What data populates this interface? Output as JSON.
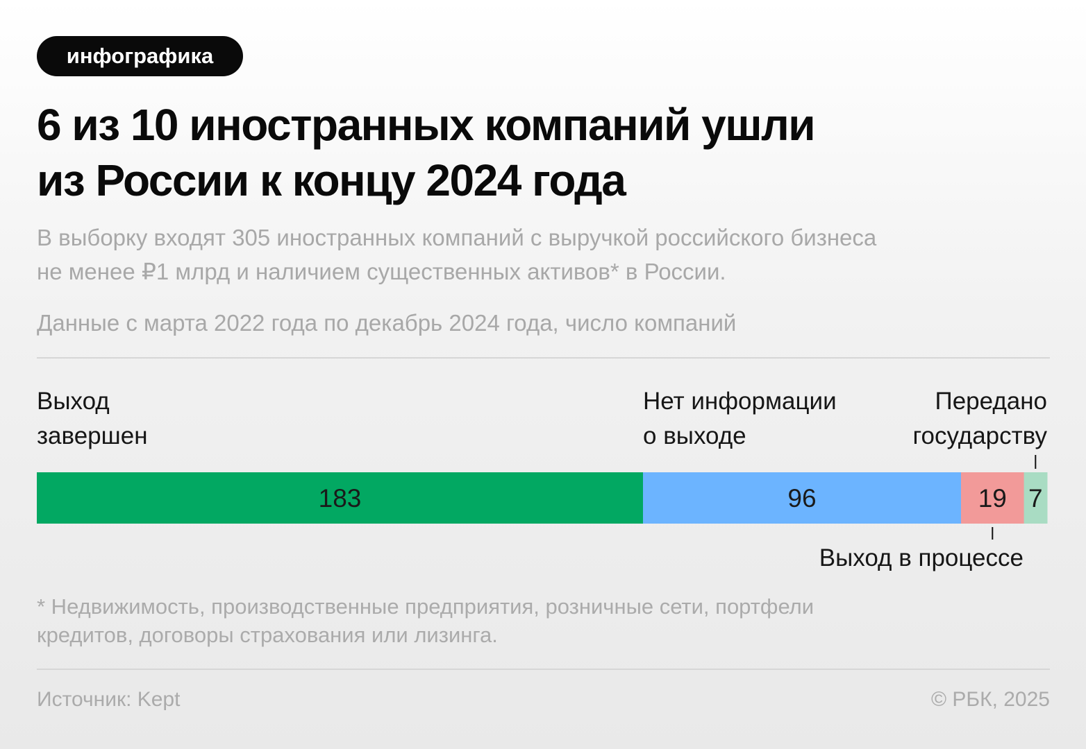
{
  "badge": "инфографика",
  "title_line1": "6 из 10 иностранных компаний ушли",
  "title_line2": "из России к концу 2024 года",
  "subtitle_line1": "В выборку входят 305 иностранных компаний с выручкой российского бизнеса",
  "subtitle_line2": "не менее ₽1 млрд и наличием существенных активов* в России.",
  "data_note": "Данные с марта 2022 года по декабрь 2024 года, число компаний",
  "labels": {
    "completed_line1": "Выход",
    "completed_line2": "завершен",
    "no_info_line1": "Нет информации",
    "no_info_line2": "о выходе",
    "state_line1": "Передано",
    "state_line2": "государству",
    "in_process": "Выход в процессе"
  },
  "footnote_line1": "* Недвижимость, производственные предприятия, розничные сети, портфели",
  "footnote_line2": "кредитов, договоры страхования или лизинга.",
  "source": "Источник: Kept",
  "copyright": "© РБК, 2025",
  "chart_data": {
    "type": "bar",
    "orientation": "horizontal-stacked",
    "total": 305,
    "categories": [
      "Выход завершен",
      "Нет информации о выходе",
      "Выход в процессе",
      "Передано государству"
    ],
    "values": [
      183,
      96,
      19,
      7
    ],
    "colors": [
      "#02a862",
      "#6cb4ff",
      "#f29a99",
      "#a9dcc3"
    ]
  }
}
